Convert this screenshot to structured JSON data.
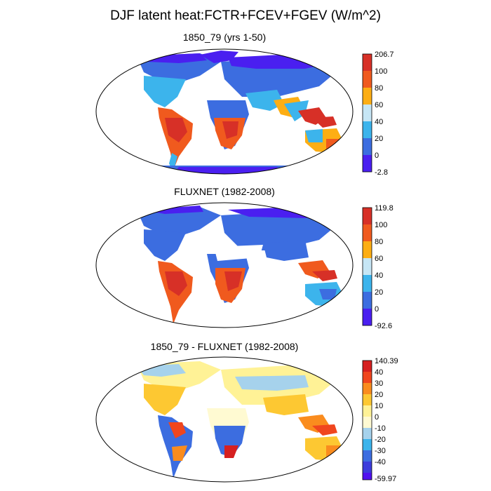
{
  "title": "DJF latent heat:FCTR+FCEV+FGEV (W/m^2)",
  "panels": [
    {
      "id": "model",
      "title": "1850_79 (yrs 1-50)",
      "colorbar": {
        "labels": [
          "206.7",
          "100",
          "80",
          "60",
          "40",
          "20",
          "0",
          "-2.8"
        ],
        "colors": [
          "#d73027",
          "#f05a1e",
          "#fdae14",
          "#c6e6f5",
          "#3cb4ec",
          "#3c6de0",
          "#4a1ff0"
        ]
      }
    },
    {
      "id": "obs",
      "title": "FLUXNET (1982-2008)",
      "colorbar": {
        "labels": [
          "119.8",
          "100",
          "80",
          "60",
          "40",
          "20",
          "0",
          "-92.6"
        ],
        "colors": [
          "#d73027",
          "#f05a1e",
          "#fdae14",
          "#c6e6f5",
          "#3cb4ec",
          "#3c6de0",
          "#4a1ff0"
        ]
      }
    },
    {
      "id": "diff",
      "title": "1850_79 - FLUXNET (1982-2008)",
      "colorbar": {
        "labels": [
          "140.39",
          "40",
          "30",
          "20",
          "10",
          "0",
          "-10",
          "-20",
          "-30",
          "-40",
          "-59.97"
        ],
        "colors": [
          "#d62020",
          "#f0461e",
          "#fa8c1e",
          "#fdc832",
          "#fff296",
          "#fffad2",
          "#a6d2ec",
          "#3cb4ec",
          "#3c6de0",
          "#3c3cdc",
          "#5010f0"
        ]
      }
    }
  ]
}
